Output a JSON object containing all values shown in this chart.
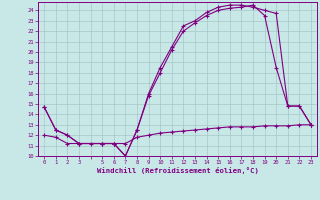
{
  "xlabel": "Windchill (Refroidissement éolien,°C)",
  "background_color": "#c8e8e8",
  "line_color": "#800080",
  "grid_color": "#a8c8c8",
  "xlim": [
    -0.5,
    23.5
  ],
  "ylim": [
    10,
    24.8
  ],
  "xticks": [
    0,
    1,
    2,
    3,
    4,
    5,
    6,
    7,
    8,
    9,
    10,
    11,
    12,
    13,
    14,
    15,
    16,
    17,
    18,
    19,
    20,
    21,
    22,
    23
  ],
  "yticks": [
    10,
    11,
    12,
    13,
    14,
    15,
    16,
    17,
    18,
    19,
    20,
    21,
    22,
    23,
    24
  ],
  "line1_x": [
    0,
    1,
    2,
    3,
    5,
    6,
    7,
    8,
    9,
    10,
    11,
    12,
    13,
    14,
    15,
    16,
    17,
    18,
    19,
    20,
    21,
    22,
    23
  ],
  "line1_y": [
    14.7,
    12.5,
    12.0,
    11.2,
    11.2,
    11.2,
    10.0,
    12.5,
    16.0,
    18.5,
    20.5,
    22.5,
    23.0,
    23.8,
    24.3,
    24.5,
    24.5,
    24.3,
    24.0,
    23.7,
    14.8,
    14.8,
    13.0
  ],
  "line2_x": [
    0,
    1,
    2,
    3,
    5,
    6,
    7,
    8,
    9,
    10,
    11,
    12,
    13,
    14,
    15,
    16,
    17,
    18,
    19,
    20,
    21,
    22,
    23
  ],
  "line2_y": [
    14.7,
    12.5,
    12.0,
    11.2,
    11.2,
    11.2,
    10.0,
    12.5,
    15.8,
    18.0,
    20.2,
    22.0,
    22.8,
    23.5,
    24.0,
    24.2,
    24.3,
    24.5,
    23.5,
    18.5,
    14.8,
    14.8,
    13.0
  ],
  "line3_x": [
    0,
    1,
    2,
    3,
    4,
    5,
    6,
    7,
    8,
    9,
    10,
    11,
    12,
    13,
    14,
    15,
    16,
    17,
    18,
    19,
    20,
    21,
    22,
    23
  ],
  "line3_y": [
    12.0,
    11.8,
    11.2,
    11.2,
    11.2,
    11.2,
    11.2,
    11.2,
    11.8,
    12.0,
    12.2,
    12.3,
    12.4,
    12.5,
    12.6,
    12.7,
    12.8,
    12.8,
    12.8,
    12.9,
    12.9,
    12.9,
    13.0,
    13.0
  ]
}
